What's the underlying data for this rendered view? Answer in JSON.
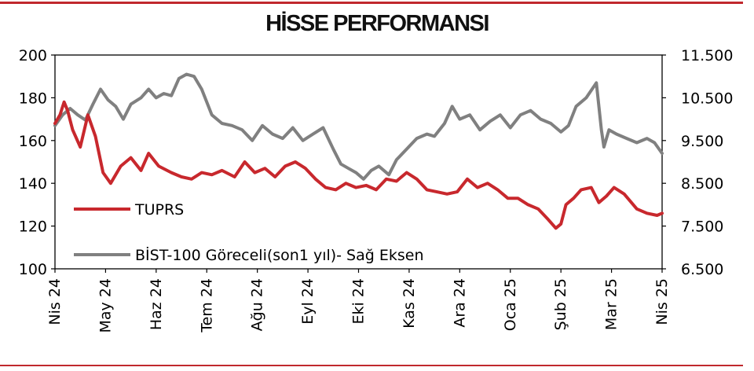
{
  "chart_data": {
    "type": "line",
    "title": "HİSSE PERFORMANSI",
    "x": [
      "Nis 24",
      "May 24",
      "Haz 24",
      "Tem 24",
      "Ağu 24",
      "Eyl 24",
      "Eki 24",
      "Kas 24",
      "Ara 24",
      "Oca 25",
      "Şub 25",
      "Mar 25",
      "Nis 25"
    ],
    "xticks": [
      "Nis 24",
      "May 24",
      "Haz 24",
      "Tem 24",
      "Ağu 24",
      "Eyl 24",
      "Eki 24",
      "Kas 24",
      "Ara 24",
      "Oca 25",
      "Şub 25",
      "Mar 25",
      "Nis 25"
    ],
    "y_left": {
      "ylim": [
        100,
        200
      ],
      "ticks": [
        "100",
        "120",
        "140",
        "160",
        "180",
        "200"
      ]
    },
    "y_right": {
      "ylim": [
        6500,
        11500
      ],
      "ticks": [
        "6.500",
        "7.500",
        "8.500",
        "9.500",
        "10.500",
        "11.500"
      ]
    },
    "legend_position": "lower-left",
    "series": [
      {
        "name": "TUPRS",
        "axis": "left",
        "color": "#c8282d",
        "values": [
          [
            0.0,
            168
          ],
          [
            0.1,
            172
          ],
          [
            0.18,
            178
          ],
          [
            0.25,
            174
          ],
          [
            0.35,
            165
          ],
          [
            0.5,
            157
          ],
          [
            0.65,
            172
          ],
          [
            0.8,
            162
          ],
          [
            0.95,
            145
          ],
          [
            1.1,
            140
          ],
          [
            1.3,
            148
          ],
          [
            1.5,
            152
          ],
          [
            1.7,
            146
          ],
          [
            1.85,
            154
          ],
          [
            2.05,
            148
          ],
          [
            2.3,
            145
          ],
          [
            2.5,
            143
          ],
          [
            2.7,
            142
          ],
          [
            2.9,
            145
          ],
          [
            3.1,
            144
          ],
          [
            3.3,
            146
          ],
          [
            3.55,
            143
          ],
          [
            3.75,
            150
          ],
          [
            3.95,
            145
          ],
          [
            4.15,
            147
          ],
          [
            4.35,
            143
          ],
          [
            4.55,
            148
          ],
          [
            4.75,
            150
          ],
          [
            4.95,
            147
          ],
          [
            5.15,
            142
          ],
          [
            5.35,
            138
          ],
          [
            5.55,
            137
          ],
          [
            5.75,
            140
          ],
          [
            5.95,
            138
          ],
          [
            6.15,
            139
          ],
          [
            6.35,
            137
          ],
          [
            6.55,
            142
          ],
          [
            6.75,
            141
          ],
          [
            6.95,
            145
          ],
          [
            7.15,
            142
          ],
          [
            7.35,
            137
          ],
          [
            7.55,
            136
          ],
          [
            7.75,
            135
          ],
          [
            7.95,
            136
          ],
          [
            8.15,
            142
          ],
          [
            8.35,
            138
          ],
          [
            8.55,
            140
          ],
          [
            8.75,
            137
          ],
          [
            8.95,
            133
          ],
          [
            9.15,
            133
          ],
          [
            9.35,
            130
          ],
          [
            9.55,
            128
          ],
          [
            9.75,
            123
          ],
          [
            9.9,
            119
          ],
          [
            10.0,
            121
          ],
          [
            10.1,
            130
          ],
          [
            10.25,
            133
          ],
          [
            10.4,
            137
          ],
          [
            10.6,
            138
          ],
          [
            10.75,
            131
          ],
          [
            10.9,
            134
          ],
          [
            11.05,
            138
          ],
          [
            11.25,
            135
          ],
          [
            11.5,
            128
          ],
          [
            11.7,
            126
          ],
          [
            11.9,
            125
          ],
          [
            12.0,
            126
          ]
        ]
      },
      {
        "name": "BİST-100 Göreceli(son1 yıl)- Sağ Eksen",
        "axis": "right",
        "color": "#808080",
        "values": [
          [
            0.0,
            9850
          ],
          [
            0.15,
            10100
          ],
          [
            0.3,
            10250
          ],
          [
            0.45,
            10100
          ],
          [
            0.6,
            9980
          ],
          [
            0.75,
            10350
          ],
          [
            0.9,
            10700
          ],
          [
            1.05,
            10450
          ],
          [
            1.2,
            10300
          ],
          [
            1.35,
            10000
          ],
          [
            1.5,
            10350
          ],
          [
            1.7,
            10500
          ],
          [
            1.85,
            10700
          ],
          [
            2.0,
            10500
          ],
          [
            2.15,
            10600
          ],
          [
            2.3,
            10550
          ],
          [
            2.45,
            10950
          ],
          [
            2.6,
            11050
          ],
          [
            2.75,
            11000
          ],
          [
            2.9,
            10700
          ],
          [
            3.1,
            10100
          ],
          [
            3.3,
            9900
          ],
          [
            3.5,
            9850
          ],
          [
            3.7,
            9750
          ],
          [
            3.9,
            9500
          ],
          [
            4.1,
            9850
          ],
          [
            4.3,
            9650
          ],
          [
            4.5,
            9550
          ],
          [
            4.7,
            9800
          ],
          [
            4.9,
            9500
          ],
          [
            5.1,
            9650
          ],
          [
            5.3,
            9800
          ],
          [
            5.5,
            9300
          ],
          [
            5.65,
            8950
          ],
          [
            5.8,
            8850
          ],
          [
            5.95,
            8750
          ],
          [
            6.1,
            8600
          ],
          [
            6.25,
            8800
          ],
          [
            6.4,
            8900
          ],
          [
            6.6,
            8700
          ],
          [
            6.75,
            9050
          ],
          [
            6.95,
            9300
          ],
          [
            7.15,
            9550
          ],
          [
            7.35,
            9650
          ],
          [
            7.5,
            9600
          ],
          [
            7.7,
            9900
          ],
          [
            7.85,
            10300
          ],
          [
            8.0,
            10000
          ],
          [
            8.2,
            10100
          ],
          [
            8.4,
            9750
          ],
          [
            8.6,
            9950
          ],
          [
            8.8,
            10100
          ],
          [
            9.0,
            9800
          ],
          [
            9.2,
            10100
          ],
          [
            9.4,
            10200
          ],
          [
            9.6,
            10000
          ],
          [
            9.8,
            9900
          ],
          [
            10.0,
            9700
          ],
          [
            10.15,
            9850
          ],
          [
            10.3,
            10300
          ],
          [
            10.5,
            10500
          ],
          [
            10.7,
            10850
          ],
          [
            10.8,
            9750
          ],
          [
            10.85,
            9350
          ],
          [
            10.95,
            9750
          ],
          [
            11.1,
            9650
          ],
          [
            11.3,
            9550
          ],
          [
            11.5,
            9450
          ],
          [
            11.7,
            9550
          ],
          [
            11.85,
            9450
          ],
          [
            12.0,
            9200
          ]
        ]
      }
    ]
  }
}
